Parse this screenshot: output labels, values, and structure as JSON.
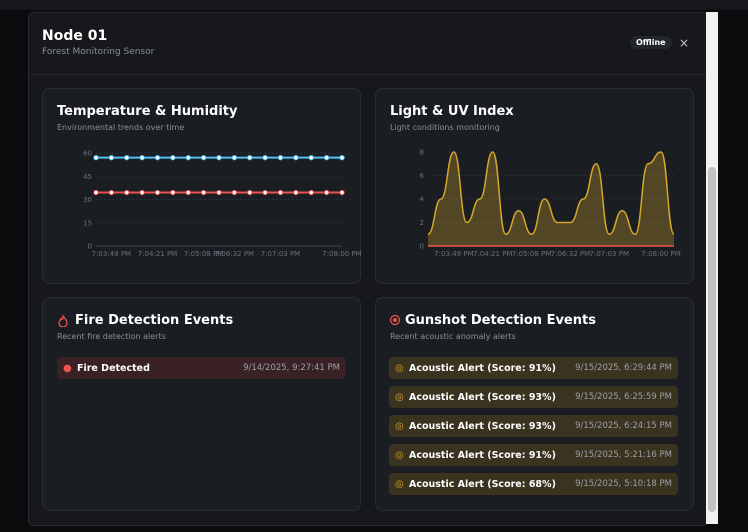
{
  "header": {
    "title": "Node 01",
    "subtitle": "Forest Monitoring Sensor",
    "status": "Offline"
  },
  "chart_data": [
    {
      "type": "line",
      "title": "Temperature & Humidity",
      "subtitle": "Environmental trends over time",
      "categories": [
        null,
        "7:03:49 PM",
        null,
        null,
        "7:04:21 PM",
        null,
        null,
        "7:05:08 PM",
        null,
        "7:06:32 PM",
        null,
        null,
        "7:07:03 PM",
        null,
        null,
        null,
        "7:08:00 PM"
      ],
      "series": [
        {
          "color": "#4fc3f7",
          "values": [
            57,
            57,
            57,
            57,
            57,
            57,
            57,
            57,
            57,
            57,
            57,
            57,
            57,
            57,
            57,
            57,
            57
          ]
        },
        {
          "color": "#ef5350",
          "values": [
            34.5,
            34.5,
            34.5,
            34.5,
            34.5,
            34.5,
            34.5,
            34.5,
            34.5,
            34.5,
            34.5,
            34.5,
            34.5,
            34.5,
            34.5,
            34.5,
            34.5
          ]
        }
      ],
      "ylim": [
        0,
        60
      ],
      "yticks": [
        0,
        15,
        30,
        45,
        60
      ],
      "grid": true
    },
    {
      "type": "area",
      "title": "Light & UV Index",
      "subtitle": "Light conditions monitoring",
      "categories": [
        null,
        null,
        "7:03:49 PM",
        null,
        null,
        "7:04:21 PM",
        null,
        null,
        "7:05:08 PM",
        null,
        null,
        "7:06:32 PM",
        null,
        null,
        "7:07:03 PM",
        null,
        null,
        null,
        "7:08:00 PM",
        null
      ],
      "series": [
        {
          "color": "#d4a72c",
          "values": [
            1,
            4,
            8,
            2,
            4,
            8,
            1,
            3,
            1,
            4,
            2,
            2,
            4,
            7,
            1,
            3,
            1,
            7,
            8,
            1
          ]
        },
        {
          "color": "#ef5350",
          "values": [
            0,
            0,
            0,
            0,
            0,
            0,
            0,
            0,
            0,
            0,
            0,
            0,
            0,
            0,
            0,
            0,
            0,
            0,
            0,
            0
          ]
        }
      ],
      "ylim": [
        0,
        8
      ],
      "yticks": [
        0,
        2,
        4,
        6,
        8
      ],
      "grid": true
    }
  ],
  "fire": {
    "title": "Fire Detection Events",
    "subtitle": "Recent fire detection alerts",
    "events": [
      {
        "label": "Fire Detected",
        "time": "9/14/2025, 9:27:41 PM"
      }
    ]
  },
  "gunshot": {
    "title": "Gunshot Detection Events",
    "subtitle": "Recent acoustic anomaly alerts",
    "events": [
      {
        "label": "Acoustic Alert (Score: 91%)",
        "time": "9/15/2025, 6:29:44 PM"
      },
      {
        "label": "Acoustic Alert (Score: 93%)",
        "time": "9/15/2025, 6:25:59 PM"
      },
      {
        "label": "Acoustic Alert (Score: 93%)",
        "time": "9/15/2025, 6:24:15 PM"
      },
      {
        "label": "Acoustic Alert (Score: 91%)",
        "time": "9/15/2025, 5:21:16 PM"
      },
      {
        "label": "Acoustic Alert (Score: 68%)",
        "time": "9/15/2025, 5:10:18 PM"
      }
    ]
  }
}
